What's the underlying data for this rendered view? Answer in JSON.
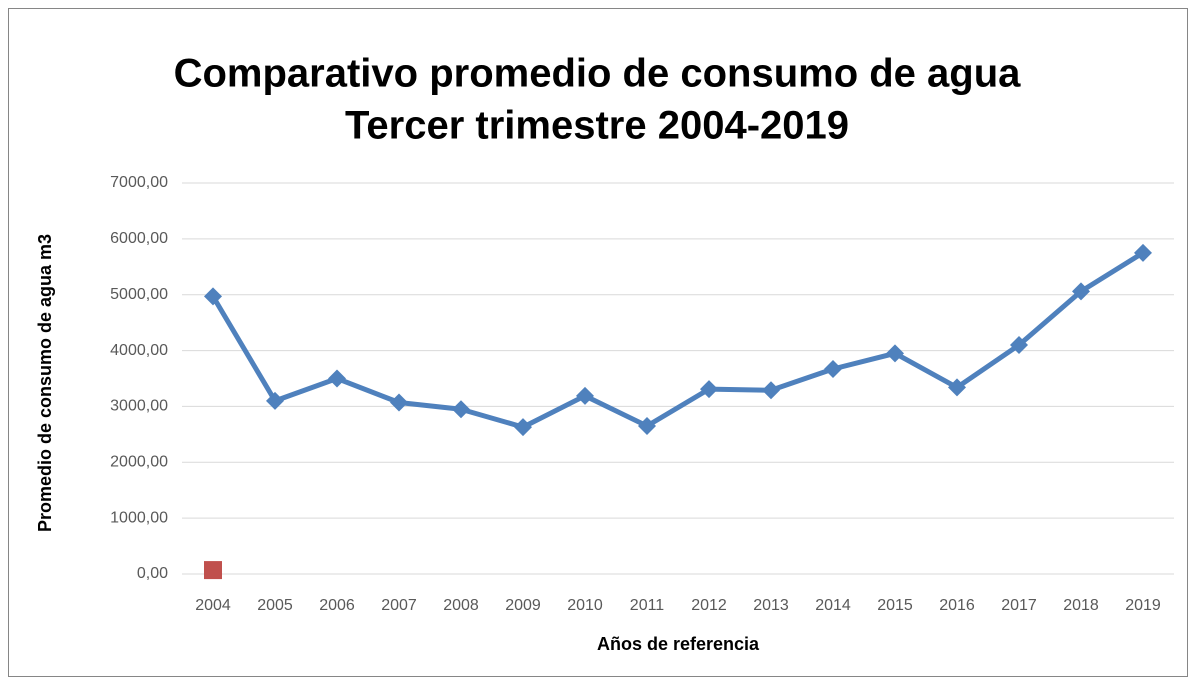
{
  "chart_data": {
    "type": "line",
    "title": "Comparativo promedio de consumo de agua",
    "subtitle": "Tercer trimestre 2004-2019",
    "x_label": "Años de referencia",
    "y_label": "Promedio de consumo de agua m3",
    "categories": [
      "2004",
      "2005",
      "2006",
      "2007",
      "2008",
      "2009",
      "2010",
      "2011",
      "2012",
      "2013",
      "2014",
      "2015",
      "2016",
      "2017",
      "2018",
      "2019"
    ],
    "series": [
      {
        "color": "#4f81bd",
        "marker": "diamond",
        "line": true,
        "values": [
          4970,
          3100,
          3500,
          3070,
          2950,
          2630,
          3190,
          2650,
          3310,
          3290,
          3670,
          3950,
          3340,
          4100,
          5060,
          5750
        ]
      },
      {
        "color": "#c0504d",
        "marker": "square",
        "line": false,
        "values": [
          70,
          null,
          null,
          null,
          null,
          null,
          null,
          null,
          null,
          null,
          null,
          null,
          null,
          null,
          null,
          null
        ]
      }
    ],
    "ylim": [
      0,
      7000
    ],
    "yticks": [
      {
        "value": 0,
        "label": "0,00"
      },
      {
        "value": 1000,
        "label": "1000,00"
      },
      {
        "value": 2000,
        "label": "2000,00"
      },
      {
        "value": 3000,
        "label": "3000,00"
      },
      {
        "value": 4000,
        "label": "4000,00"
      },
      {
        "value": 5000,
        "label": "5000,00"
      },
      {
        "value": 6000,
        "label": "6000,00"
      },
      {
        "value": 7000,
        "label": "7000,00"
      }
    ],
    "grid": true
  }
}
